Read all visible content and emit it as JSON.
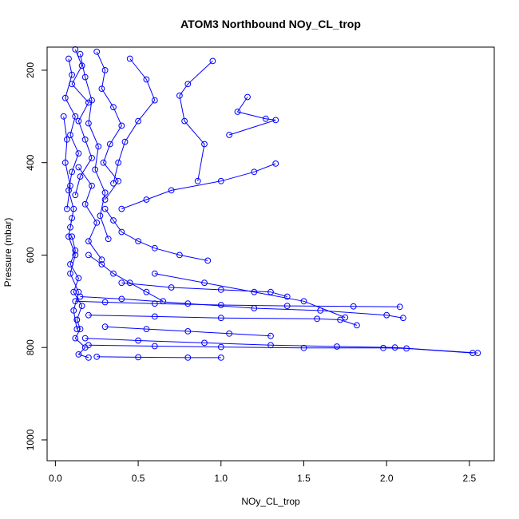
{
  "chart_data": {
    "type": "line",
    "title": "ATOM3 Northbound NOy_CL_trop",
    "xlabel": "NOy_CL_trop",
    "ylabel": "Pressure (mbar)",
    "xlim": [
      -0.05,
      2.65
    ],
    "ylim": [
      1045,
      150
    ],
    "y_reversed": true,
    "x_ticks": [
      {
        "value": 0.0,
        "label": "0.0"
      },
      {
        "value": 0.5,
        "label": "0.5"
      },
      {
        "value": 1.0,
        "label": "1.0"
      },
      {
        "value": 1.5,
        "label": "1.5"
      },
      {
        "value": 2.0,
        "label": "2.0"
      },
      {
        "value": 2.5,
        "label": "2.5"
      }
    ],
    "y_ticks": [
      {
        "value": 200,
        "label": "200"
      },
      {
        "value": 400,
        "label": "400"
      },
      {
        "value": 600,
        "label": "600"
      },
      {
        "value": 800,
        "label": "800"
      },
      {
        "value": 1000,
        "label": "1000"
      }
    ],
    "grid": false,
    "legend": "none",
    "marker": "open-circle",
    "line_color": "#0000ff",
    "series": [
      {
        "x": [
          0.12,
          0.16,
          0.1,
          0.2,
          0.14,
          0.18,
          0.22,
          0.15,
          0.12
        ],
        "y": [
          155,
          190,
          230,
          270,
          310,
          350,
          390,
          430,
          470
        ]
      },
      {
        "x": [
          0.08,
          0.1,
          0.06,
          0.12,
          0.09,
          0.14,
          0.1,
          0.08,
          0.11,
          0.09
        ],
        "y": [
          175,
          210,
          260,
          300,
          340,
          380,
          420,
          460,
          500,
          540
        ]
      },
      {
        "x": [
          0.25,
          0.3,
          0.28,
          0.35,
          0.4,
          0.33,
          0.29,
          0.38,
          0.3
        ],
        "y": [
          160,
          200,
          240,
          280,
          320,
          360,
          400,
          440,
          480
        ]
      },
      {
        "x": [
          0.15,
          0.18,
          0.22,
          0.2,
          0.26,
          0.24,
          0.3,
          0.27,
          0.32
        ],
        "y": [
          165,
          215,
          265,
          315,
          365,
          415,
          465,
          515,
          565
        ]
      },
      {
        "x": [
          0.45,
          0.55,
          0.6,
          0.5,
          0.42,
          0.38,
          0.35
        ],
        "y": [
          175,
          220,
          265,
          310,
          355,
          400,
          445
        ]
      },
      {
        "x": [
          1.16,
          1.1,
          1.27,
          1.33,
          1.05
        ],
        "y": [
          258,
          290,
          305,
          308,
          340
        ]
      },
      {
        "x": [
          0.95,
          0.8,
          0.75,
          0.78,
          0.9,
          0.86
        ],
        "y": [
          180,
          230,
          255,
          310,
          360,
          440
        ]
      },
      {
        "x": [
          1.33,
          1.2,
          1.0,
          0.7,
          0.55,
          0.4
        ],
        "y": [
          402,
          420,
          440,
          460,
          480,
          500
        ]
      },
      {
        "x": [
          0.3,
          0.35,
          0.4,
          0.5,
          0.6,
          0.75,
          0.92
        ],
        "y": [
          500,
          525,
          550,
          570,
          585,
          600,
          612
        ]
      },
      {
        "x": [
          0.1,
          0.12,
          0.09,
          0.14,
          0.11,
          0.16,
          0.13
        ],
        "y": [
          560,
          590,
          620,
          650,
          680,
          710,
          740
        ]
      },
      {
        "x": [
          0.12,
          0.3,
          0.6,
          1.0,
          1.4,
          1.8,
          2.08
        ],
        "y": [
          700,
          702,
          705,
          708,
          710,
          711,
          712
        ]
      },
      {
        "x": [
          0.15,
          0.4,
          0.8,
          1.2,
          1.6,
          2.0,
          2.1
        ],
        "y": [
          690,
          695,
          705,
          715,
          720,
          730,
          736
        ]
      },
      {
        "x": [
          0.2,
          0.6,
          1.0,
          1.58,
          1.72,
          1.82
        ],
        "y": [
          730,
          733,
          736,
          738,
          740,
          752
        ]
      },
      {
        "x": [
          0.18,
          0.5,
          0.9,
          1.3,
          1.7,
          2.05,
          2.55
        ],
        "y": [
          780,
          785,
          790,
          795,
          798,
          800,
          812
        ]
      },
      {
        "x": [
          0.2,
          0.6,
          1.0,
          1.5,
          1.98,
          2.12,
          2.52
        ],
        "y": [
          795,
          797,
          799,
          801,
          801,
          802,
          812
        ]
      },
      {
        "x": [
          0.25,
          0.5,
          0.8,
          1.0
        ],
        "y": [
          820,
          821,
          822,
          822
        ]
      },
      {
        "x": [
          0.13,
          0.15,
          0.12,
          0.18,
          0.14,
          0.2
        ],
        "y": [
          740,
          760,
          780,
          800,
          815,
          822
        ]
      },
      {
        "x": [
          0.1,
          0.08,
          0.12,
          0.09,
          0.14,
          0.11,
          0.13
        ],
        "y": [
          520,
          560,
          600,
          640,
          680,
          720,
          760
        ]
      },
      {
        "x": [
          0.2,
          0.28,
          0.35,
          0.45,
          0.55,
          0.65
        ],
        "y": [
          600,
          620,
          640,
          660,
          680,
          700
        ]
      },
      {
        "x": [
          0.4,
          0.7,
          1.0,
          1.3,
          1.4
        ],
        "y": [
          660,
          670,
          675,
          680,
          690
        ]
      },
      {
        "x": [
          0.14,
          0.22,
          0.18,
          0.25,
          0.2,
          0.28
        ],
        "y": [
          410,
          450,
          490,
          530,
          570,
          610
        ]
      },
      {
        "x": [
          0.05,
          0.07,
          0.06,
          0.09,
          0.07
        ],
        "y": [
          300,
          350,
          400,
          450,
          500
        ]
      },
      {
        "x": [
          0.6,
          0.9,
          1.2,
          1.5,
          1.75
        ],
        "y": [
          640,
          660,
          680,
          700,
          735
        ]
      },
      {
        "x": [
          0.3,
          0.55,
          0.8,
          1.05,
          1.3
        ],
        "y": [
          755,
          760,
          765,
          770,
          775
        ]
      }
    ]
  }
}
